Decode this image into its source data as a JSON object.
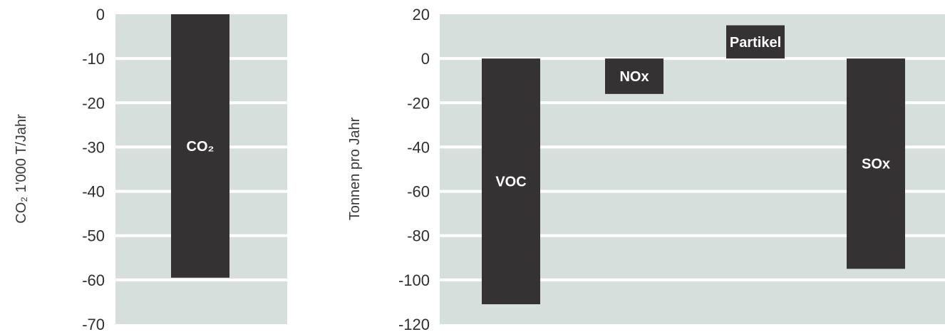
{
  "colors": {
    "plot_bg": "#d7dfdc",
    "gridline": "#ffffff",
    "bar": "#353233",
    "bar_label": "#ffffff",
    "tick_label": "#2f2f2f"
  },
  "chart_data": [
    {
      "type": "bar",
      "title": "",
      "xlabel": "",
      "ylabel": "CO₂ 1'000 T/Jahr",
      "ylim": [
        -70,
        0
      ],
      "yticks": [
        0,
        -10,
        -20,
        -30,
        -40,
        -50,
        -60,
        -70
      ],
      "grid": true,
      "legend": "none",
      "bars": [
        {
          "label": "CO₂",
          "value": -59.5
        }
      ]
    },
    {
      "type": "bar",
      "title": "",
      "xlabel": "",
      "ylabel": "Tonnen pro Jahr",
      "ylim": [
        -120,
        20
      ],
      "yticks": [
        20,
        0,
        -20,
        -40,
        -60,
        -80,
        -100,
        -120
      ],
      "grid": true,
      "legend": "none",
      "bars": [
        {
          "label": "VOC",
          "value": -111
        },
        {
          "label": "NOx",
          "value": -16
        },
        {
          "label": "Partikel",
          "value": 15
        },
        {
          "label": "SOx",
          "value": -95
        }
      ]
    }
  ]
}
